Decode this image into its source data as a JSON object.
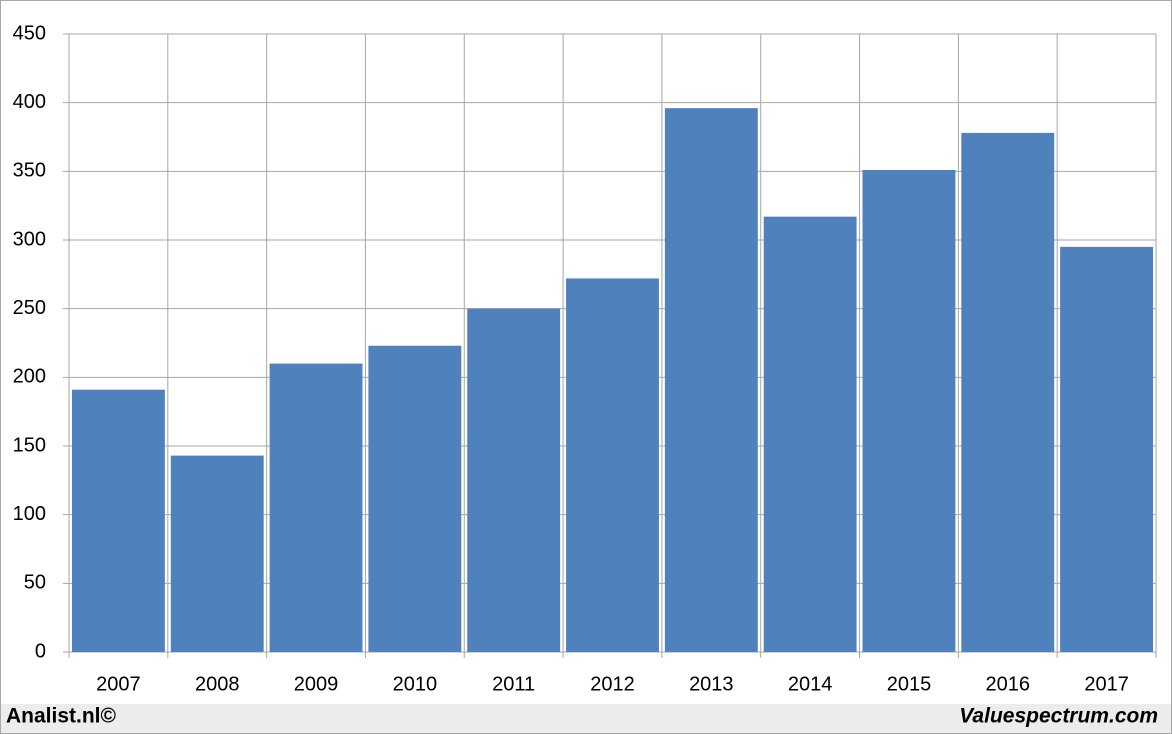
{
  "chart_data": {
    "type": "bar",
    "categories": [
      "2007",
      "2008",
      "2009",
      "2010",
      "2011",
      "2012",
      "2013",
      "2014",
      "2015",
      "2016",
      "2017"
    ],
    "values": [
      191,
      143,
      210,
      223,
      250,
      272,
      396,
      317,
      351,
      378,
      295
    ],
    "color": "#4f81bd",
    "ylim": [
      0,
      450
    ],
    "yticks": [
      0,
      50,
      100,
      150,
      200,
      250,
      300,
      350,
      400,
      450
    ],
    "grid": true,
    "annotations": [
      "Analist.nl©",
      "Valuespectrum.com"
    ]
  }
}
